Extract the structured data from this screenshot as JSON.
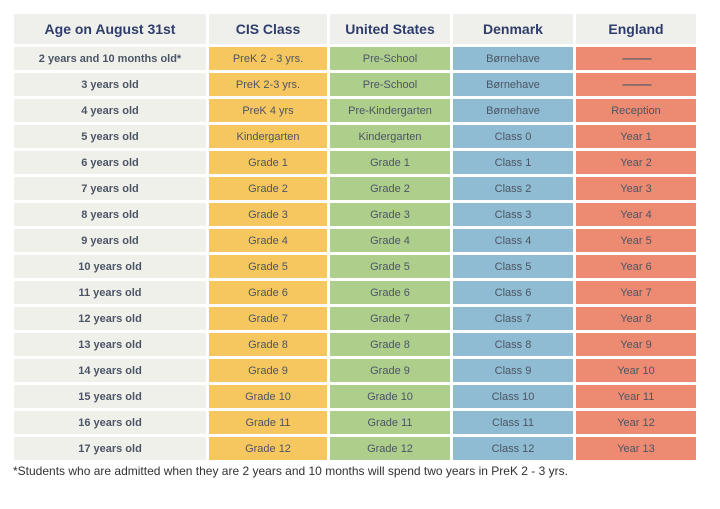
{
  "chart_data": {
    "type": "table",
    "columns": [
      "Age on August 31st",
      "CIS Class",
      "United States",
      "Denmark",
      "England"
    ],
    "rows": [
      [
        "2 years and 10 months old*",
        "PreK 2 - 3 yrs.",
        "Pre-School",
        "Børnehave",
        "———"
      ],
      [
        "3 years old",
        "PreK 2-3 yrs.",
        "Pre-School",
        "Børnehave",
        "———"
      ],
      [
        "4 years old",
        "PreK 4 yrs",
        "Pre-Kindergarten",
        "Børnehave",
        "Reception"
      ],
      [
        "5 years old",
        "Kindergarten",
        "Kindergarten",
        "Class 0",
        "Year 1"
      ],
      [
        "6 years old",
        "Grade 1",
        "Grade 1",
        "Class 1",
        "Year 2"
      ],
      [
        "7 years old",
        "Grade 2",
        "Grade 2",
        "Class 2",
        "Year 3"
      ],
      [
        "8 years old",
        "Grade 3",
        "Grade 3",
        "Class 3",
        "Year 4"
      ],
      [
        "9 years old",
        "Grade 4",
        "Grade 4",
        "Class 4",
        "Year 5"
      ],
      [
        "10 years old",
        "Grade 5",
        "Grade 5",
        "Class 5",
        "Year 6"
      ],
      [
        "11 years old",
        "Grade 6",
        "Grade 6",
        "Class 6",
        "Year 7"
      ],
      [
        "12 years old",
        "Grade 7",
        "Grade 7",
        "Class 7",
        "Year 8"
      ],
      [
        "13 years old",
        "Grade 8",
        "Grade 8",
        "Class 8",
        "Year 9"
      ],
      [
        "14 years old",
        "Grade 9",
        "Grade 9",
        "Class 9",
        "Year 10"
      ],
      [
        "15 years old",
        "Grade 10",
        "Grade 10",
        "Class 10",
        "Year 11"
      ],
      [
        "16 years old",
        "Grade 11",
        "Grade 11",
        "Class 11",
        "Year 12"
      ],
      [
        "17 years old",
        "Grade 12",
        "Grade 12",
        "Class 12",
        "Year 13"
      ]
    ],
    "footnote": "*Students who are admitted when they are 2 years and 10 months will spend two years in PreK 2 - 3 yrs.",
    "layout_hints": {
      "dash_placeholder": "———",
      "column_color_legend": {
        "Age on August 31st": "light-gray",
        "CIS Class": "yellow",
        "United States": "green",
        "Denmark": "blue",
        "England": "salmon"
      }
    }
  },
  "colors": {
    "header_bg": "#efefeb",
    "header_text": "#2e3d6b",
    "age_bg": "#f0f0eb",
    "age_text": "#3d4763",
    "cell_text": "#4c5565",
    "cis_yellow": "#f6c75f",
    "us_green": "#aece8c",
    "dk_blue": "#8fbcd2",
    "en_salmon": "#ec8b72",
    "dash_color": "#5d5d5b"
  }
}
